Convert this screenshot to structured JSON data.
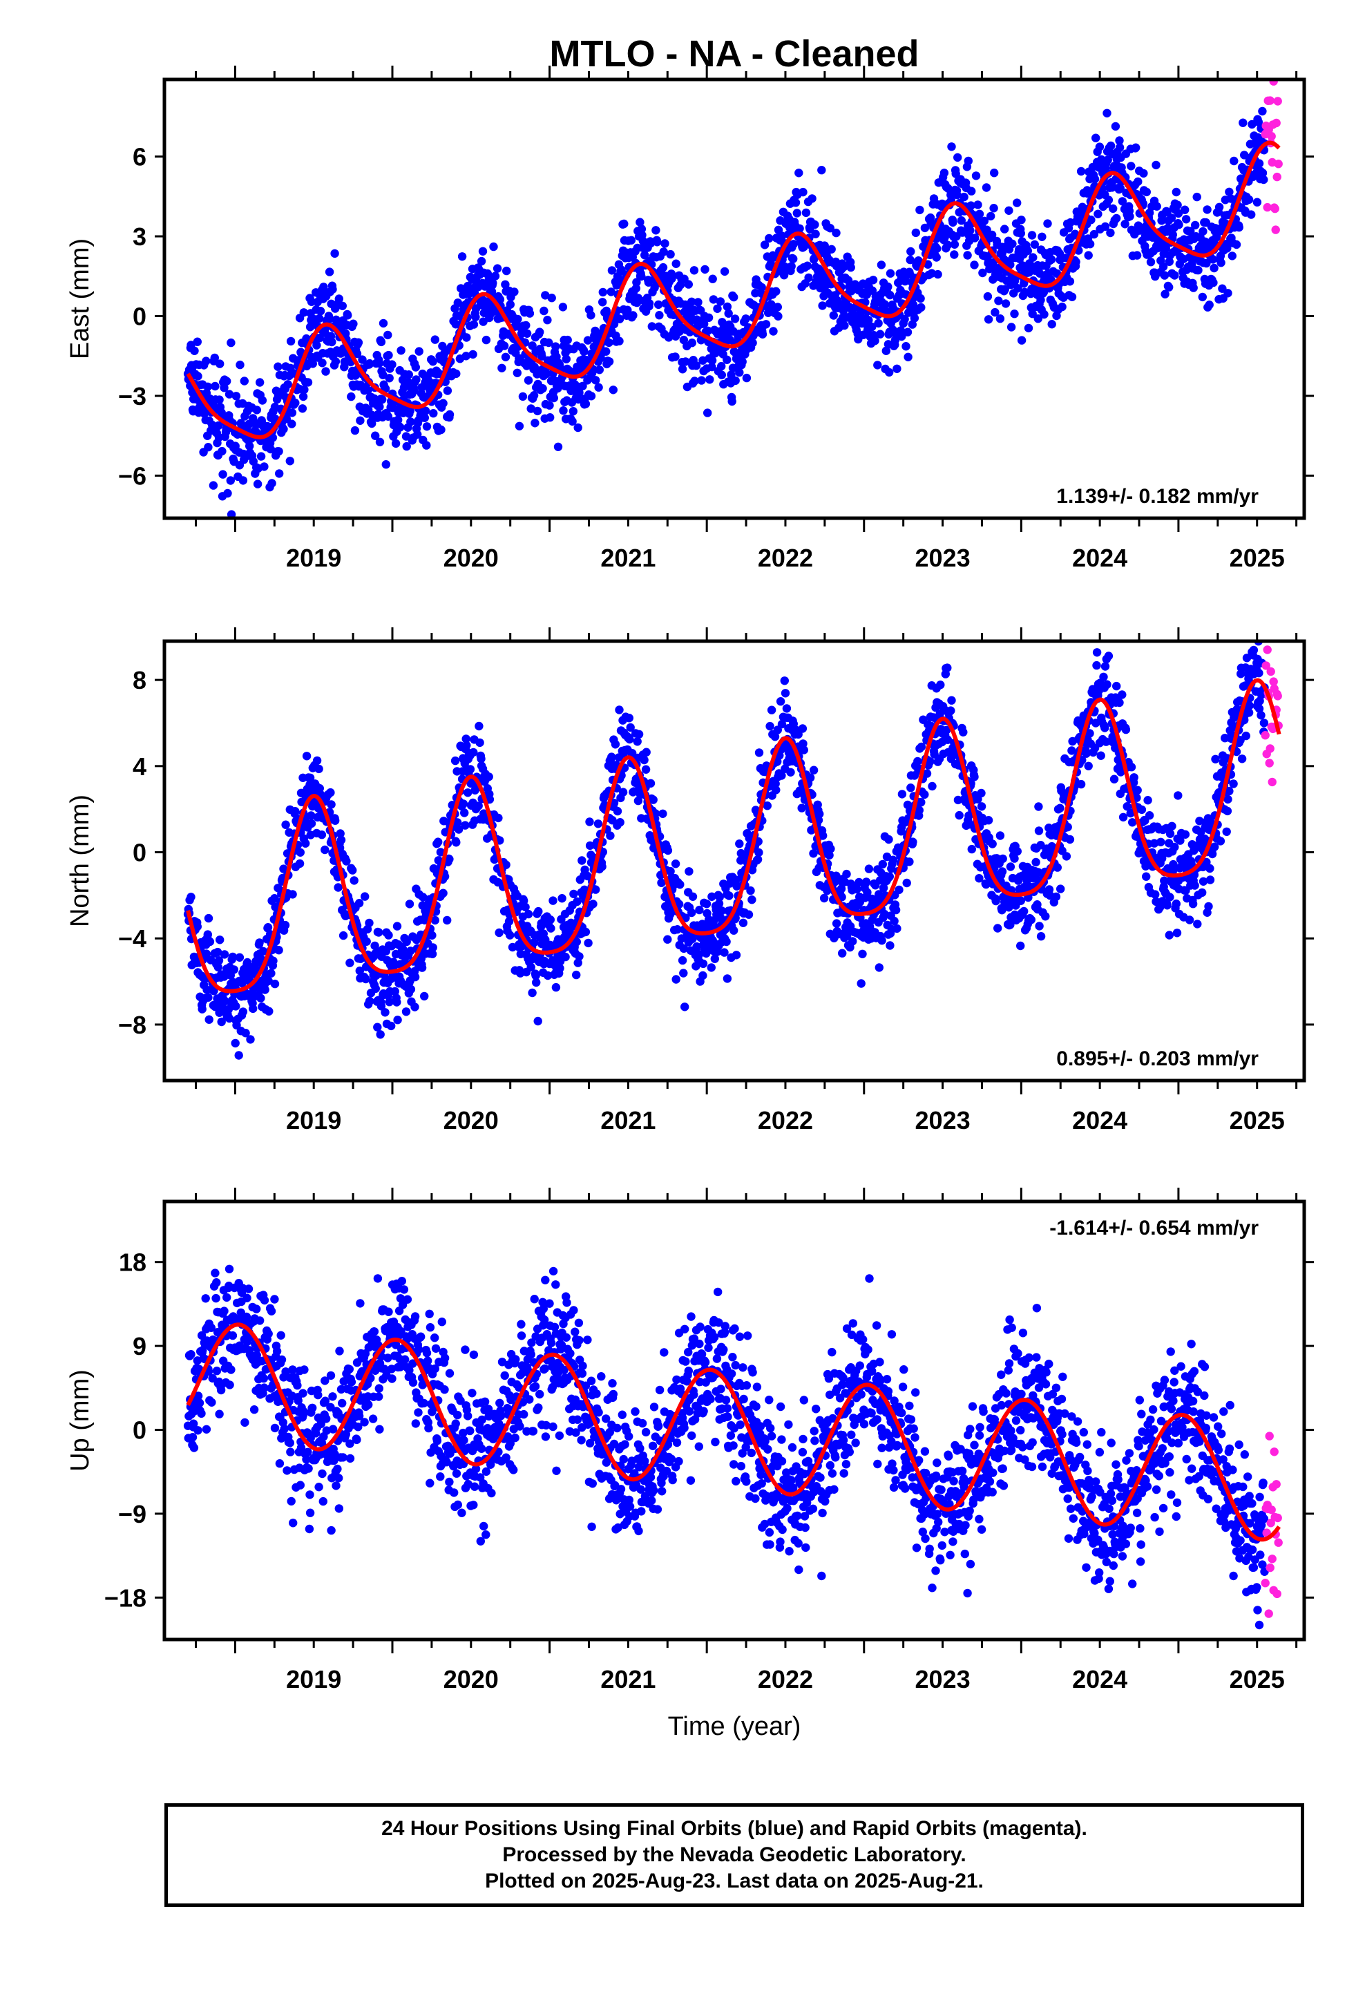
{
  "title": "MTLO  - NA - Cleaned",
  "colors": {
    "final_orbits": "#0000ff",
    "rapid_orbits": "#ff22dd",
    "model_fit": "#ff0000",
    "frame": "#000000"
  },
  "notes": [
    "24 Hour Positions Using Final Orbits (blue) and Rapid Orbits (magenta).",
    "Processed by the Nevada Geodetic Laboratory.",
    "Plotted on 2025-Aug-23. Last data on 2025-Aug-21."
  ],
  "chart_data": [
    {
      "type": "scatter",
      "component": "east",
      "ylabel": "East (mm)",
      "xlabel": "",
      "xlim": [
        2018.55,
        2025.8
      ],
      "ylim": [
        -7.6,
        8.9
      ],
      "yticks": [
        -6,
        -3,
        0,
        3,
        6
      ],
      "xticks": [
        2019,
        2020,
        2021,
        2022,
        2023,
        2024,
        2025
      ],
      "rate_label": "1.139+/- 0.182 mm/yr",
      "rate_position": "bottom-right",
      "data_start": 2018.7,
      "final_end": 2025.55,
      "rapid_end": 2025.64,
      "model": {
        "rate": 1.139,
        "offset": 0.31,
        "annual_sin": -1.05,
        "annual_cos": -1.45,
        "semiannual_sin": 0.2,
        "semiannual_cos": 0.35
      },
      "scatter_sd": 0.95
    },
    {
      "type": "scatter",
      "component": "north",
      "ylabel": "North (mm)",
      "xlabel": "",
      "xlim": [
        2018.55,
        2025.8
      ],
      "ylim": [
        -10.6,
        9.8
      ],
      "yticks": [
        -8,
        -4,
        0,
        4,
        8
      ],
      "xticks": [
        2019,
        2020,
        2021,
        2022,
        2023,
        2024,
        2025
      ],
      "rate_label": "0.895+/- 0.203 mm/yr",
      "rate_position": "bottom-right",
      "data_start": 2018.7,
      "final_end": 2025.55,
      "rapid_end": 2025.64,
      "model": {
        "rate": 0.895,
        "offset": -0.35,
        "annual_sin": 0.0,
        "annual_cos": -4.3,
        "semiannual_sin": 0.0,
        "semiannual_cos": 0.9
      },
      "scatter_sd": 1.1
    },
    {
      "type": "scatter",
      "component": "up",
      "ylabel": "Up (mm)",
      "xlabel": "Time (year)",
      "xlim": [
        2018.55,
        2025.8
      ],
      "ylim": [
        -22.5,
        24.5
      ],
      "yticks": [
        -18,
        -9,
        0,
        9,
        18
      ],
      "xticks": [
        2019,
        2020,
        2021,
        2022,
        2023,
        2024,
        2025
      ],
      "rate_label": "-1.614+/- 0.654 mm/yr",
      "rate_position": "top-right",
      "data_start": 2018.7,
      "final_end": 2025.55,
      "rapid_end": 2025.64,
      "model": {
        "rate": -1.614,
        "offset": 0.2,
        "annual_sin": 1.0,
        "annual_cos": 6.2,
        "semiannual_sin": 0.0,
        "semiannual_cos": 0.0
      },
      "scatter_sd": 3.6
    }
  ]
}
